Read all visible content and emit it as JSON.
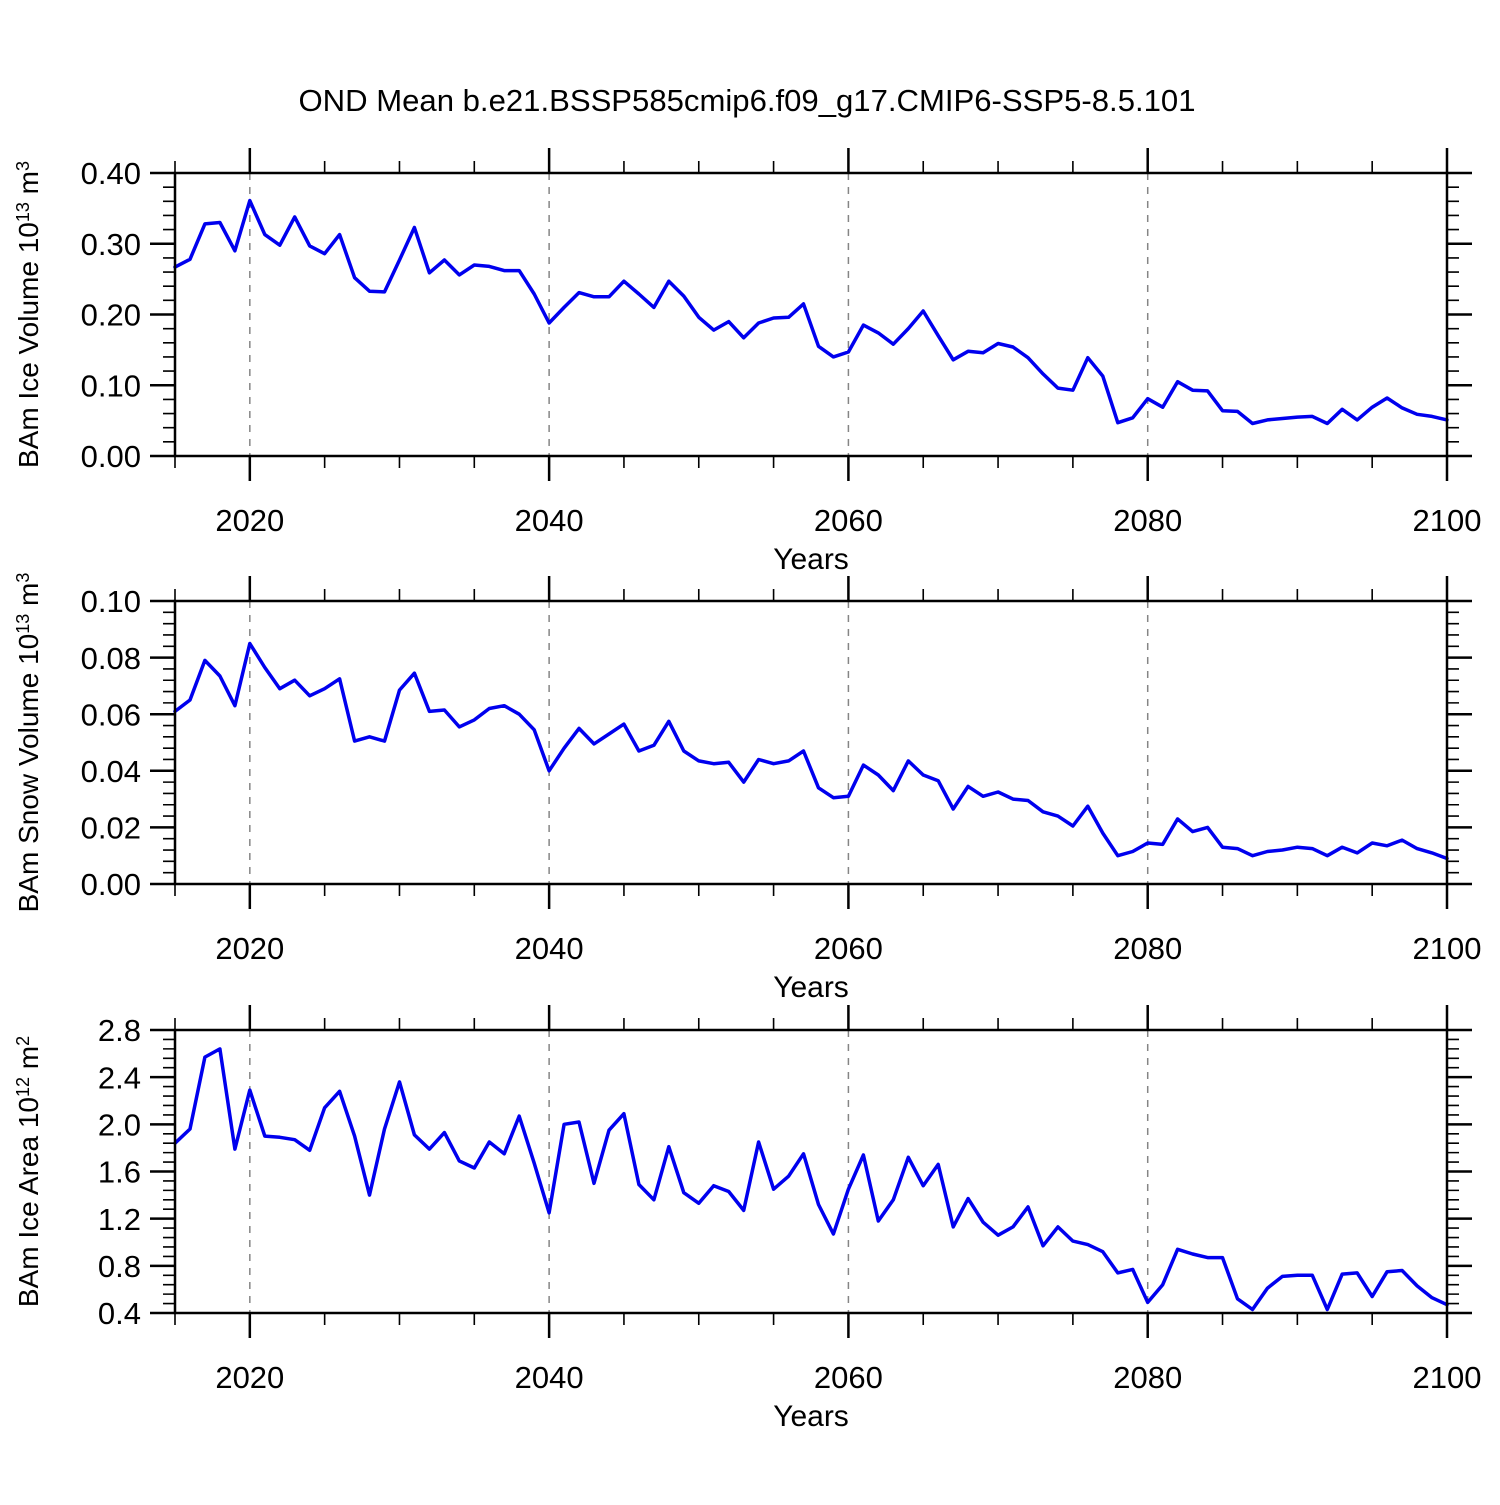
{
  "title": "OND Mean b.e21.BSSP585cmip6.f09_g17.CMIP6-SSP5-8.5.101",
  "colors": {
    "line": "#0000ee",
    "grid": "#858585",
    "axis": "#000000",
    "background": "#ffffff"
  },
  "chart_data": [
    {
      "type": "line",
      "name": "ice-volume",
      "title": "",
      "xlabel": "Years",
      "ylabel_plain": "BAm Ice Volume 10^13 m^3",
      "ylabel_parts": [
        {
          "t": "BAm Ice Volume 10"
        },
        {
          "t": "13",
          "sup": true
        },
        {
          "t": " m"
        },
        {
          "t": "3",
          "sup": true
        }
      ],
      "x_start": 2015,
      "x_end": 2100,
      "x_step": 1,
      "x_major_ticks": [
        2020,
        2040,
        2060,
        2080,
        2100
      ],
      "x_minor_step": 5,
      "x_gridlines": [
        2020,
        2040,
        2060,
        2080
      ],
      "ylim": [
        0.0,
        0.4
      ],
      "y_major_step": 0.1,
      "y_minor_step": 0.02,
      "ytick_labels": [
        "0.00",
        "0.10",
        "0.20",
        "0.30",
        "0.40"
      ],
      "grid": true,
      "legend": "none",
      "series": [
        {
          "name": "OND mean ice volume",
          "values": [
            0.267,
            0.278,
            0.328,
            0.33,
            0.29,
            0.361,
            0.313,
            0.298,
            0.338,
            0.297,
            0.286,
            0.313,
            0.252,
            0.233,
            0.232,
            0.277,
            0.323,
            0.259,
            0.277,
            0.256,
            0.27,
            0.268,
            0.262,
            0.262,
            0.229,
            0.188,
            0.21,
            0.231,
            0.225,
            0.225,
            0.247,
            0.229,
            0.21,
            0.247,
            0.226,
            0.196,
            0.178,
            0.19,
            0.167,
            0.188,
            0.195,
            0.196,
            0.215,
            0.155,
            0.14,
            0.147,
            0.185,
            0.174,
            0.158,
            0.18,
            0.205,
            0.17,
            0.136,
            0.148,
            0.146,
            0.159,
            0.154,
            0.139,
            0.116,
            0.096,
            0.093,
            0.139,
            0.113,
            0.047,
            0.054,
            0.081,
            0.069,
            0.105,
            0.093,
            0.092,
            0.064,
            0.063,
            0.046,
            0.051,
            0.053,
            0.055,
            0.056,
            0.046,
            0.066,
            0.051,
            0.069,
            0.082,
            0.068,
            0.059,
            0.056,
            0.051
          ]
        }
      ]
    },
    {
      "type": "line",
      "name": "snow-volume",
      "title": "",
      "xlabel": "Years",
      "ylabel_plain": "BAm Snow Volume 10^13 m^3",
      "ylabel_parts": [
        {
          "t": "BAm Snow Volume 10"
        },
        {
          "t": "13",
          "sup": true
        },
        {
          "t": " m"
        },
        {
          "t": "3",
          "sup": true
        }
      ],
      "x_start": 2015,
      "x_end": 2100,
      "x_step": 1,
      "x_major_ticks": [
        2020,
        2040,
        2060,
        2080,
        2100
      ],
      "x_minor_step": 5,
      "x_gridlines": [
        2020,
        2040,
        2060,
        2080
      ],
      "ylim": [
        0.0,
        0.1
      ],
      "y_major_step": 0.02,
      "y_minor_step": 0.004,
      "ytick_labels": [
        "0.00",
        "0.02",
        "0.04",
        "0.06",
        "0.08",
        "0.10"
      ],
      "grid": true,
      "legend": "none",
      "series": [
        {
          "name": "OND mean snow volume",
          "values": [
            0.061,
            0.065,
            0.079,
            0.0735,
            0.063,
            0.085,
            0.0765,
            0.069,
            0.072,
            0.0665,
            0.069,
            0.0725,
            0.0505,
            0.052,
            0.0505,
            0.0685,
            0.0745,
            0.061,
            0.0615,
            0.0555,
            0.058,
            0.062,
            0.063,
            0.06,
            0.0545,
            0.04,
            0.048,
            0.055,
            0.0495,
            0.053,
            0.0565,
            0.047,
            0.049,
            0.0575,
            0.047,
            0.0435,
            0.0425,
            0.043,
            0.036,
            0.044,
            0.0425,
            0.0435,
            0.047,
            0.034,
            0.0305,
            0.031,
            0.042,
            0.0385,
            0.033,
            0.0435,
            0.0385,
            0.0365,
            0.0265,
            0.0345,
            0.031,
            0.0325,
            0.03,
            0.0295,
            0.0255,
            0.024,
            0.0205,
            0.0275,
            0.018,
            0.01,
            0.0115,
            0.0145,
            0.014,
            0.023,
            0.0185,
            0.02,
            0.013,
            0.0125,
            0.01,
            0.0115,
            0.012,
            0.013,
            0.0125,
            0.01,
            0.013,
            0.011,
            0.0145,
            0.0135,
            0.0155,
            0.0125,
            0.011,
            0.009
          ]
        }
      ]
    },
    {
      "type": "line",
      "name": "ice-area",
      "title": "",
      "xlabel": "Years",
      "ylabel_plain": "BAm Ice Area 10^12 m^2",
      "ylabel_parts": [
        {
          "t": "BAm Ice Area 10"
        },
        {
          "t": "12",
          "sup": true
        },
        {
          "t": " m"
        },
        {
          "t": "2",
          "sup": true
        }
      ],
      "x_start": 2015,
      "x_end": 2100,
      "x_step": 1,
      "x_major_ticks": [
        2020,
        2040,
        2060,
        2080,
        2100
      ],
      "x_minor_step": 5,
      "x_gridlines": [
        2020,
        2040,
        2060,
        2080
      ],
      "ylim": [
        0.4,
        2.8
      ],
      "y_major_step": 0.4,
      "y_minor_step": 0.08,
      "ytick_labels": [
        "0.4",
        "0.8",
        "1.2",
        "1.6",
        "2.0",
        "2.4",
        "2.8"
      ],
      "grid": true,
      "legend": "none",
      "series": [
        {
          "name": "OND mean ice area",
          "values": [
            1.84,
            1.96,
            2.57,
            2.64,
            1.79,
            2.29,
            1.9,
            1.89,
            1.87,
            1.78,
            2.14,
            2.28,
            1.9,
            1.4,
            1.96,
            2.36,
            1.91,
            1.79,
            1.93,
            1.69,
            1.63,
            1.85,
            1.75,
            2.07,
            1.67,
            1.25,
            2.0,
            2.02,
            1.5,
            1.95,
            2.09,
            1.49,
            1.36,
            1.81,
            1.42,
            1.33,
            1.48,
            1.43,
            1.27,
            1.85,
            1.45,
            1.56,
            1.75,
            1.32,
            1.07,
            1.45,
            1.74,
            1.18,
            1.36,
            1.72,
            1.48,
            1.66,
            1.13,
            1.37,
            1.17,
            1.06,
            1.13,
            1.3,
            0.97,
            1.13,
            1.01,
            0.98,
            0.92,
            0.74,
            0.77,
            0.49,
            0.64,
            0.94,
            0.9,
            0.87,
            0.87,
            0.52,
            0.43,
            0.61,
            0.71,
            0.72,
            0.72,
            0.43,
            0.73,
            0.74,
            0.54,
            0.75,
            0.76,
            0.63,
            0.53,
            0.47
          ]
        }
      ]
    }
  ]
}
